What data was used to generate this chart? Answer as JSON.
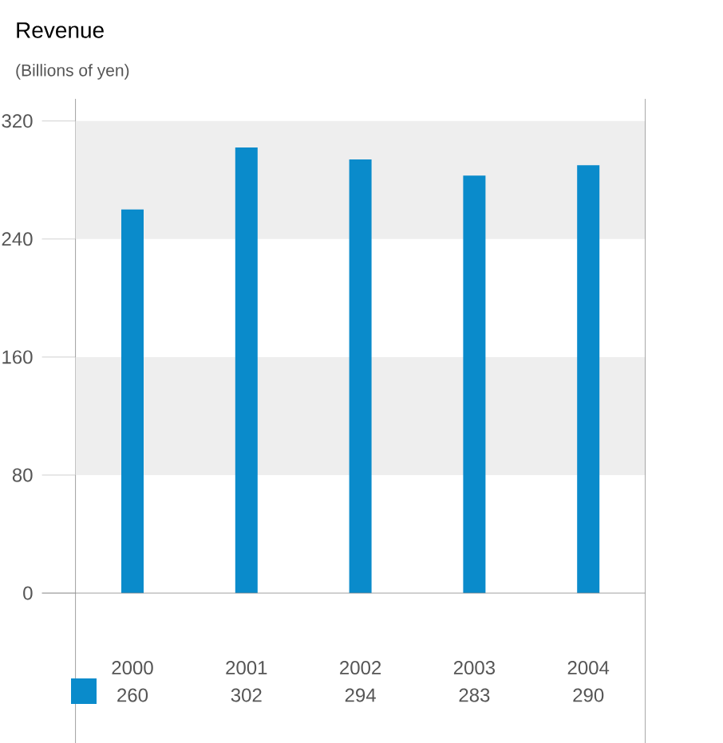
{
  "chart_data": {
    "type": "bar",
    "title": "Revenue",
    "subtitle": "(Billions of yen)",
    "categories": [
      "2000",
      "2001",
      "2002",
      "2003",
      "2004"
    ],
    "values": [
      260,
      302,
      294,
      283,
      290
    ],
    "color": "#0a8bcb",
    "ylim": [
      0,
      335
    ],
    "yticks": [
      0,
      80,
      160,
      240,
      320
    ],
    "bands": [
      {
        "axis": "y",
        "from": 80,
        "to": 160,
        "color": "#eeeeee"
      },
      {
        "axis": "y",
        "from": 240,
        "to": 320,
        "color": "#eeeeee"
      }
    ],
    "data_labels": true,
    "grid": false
  }
}
